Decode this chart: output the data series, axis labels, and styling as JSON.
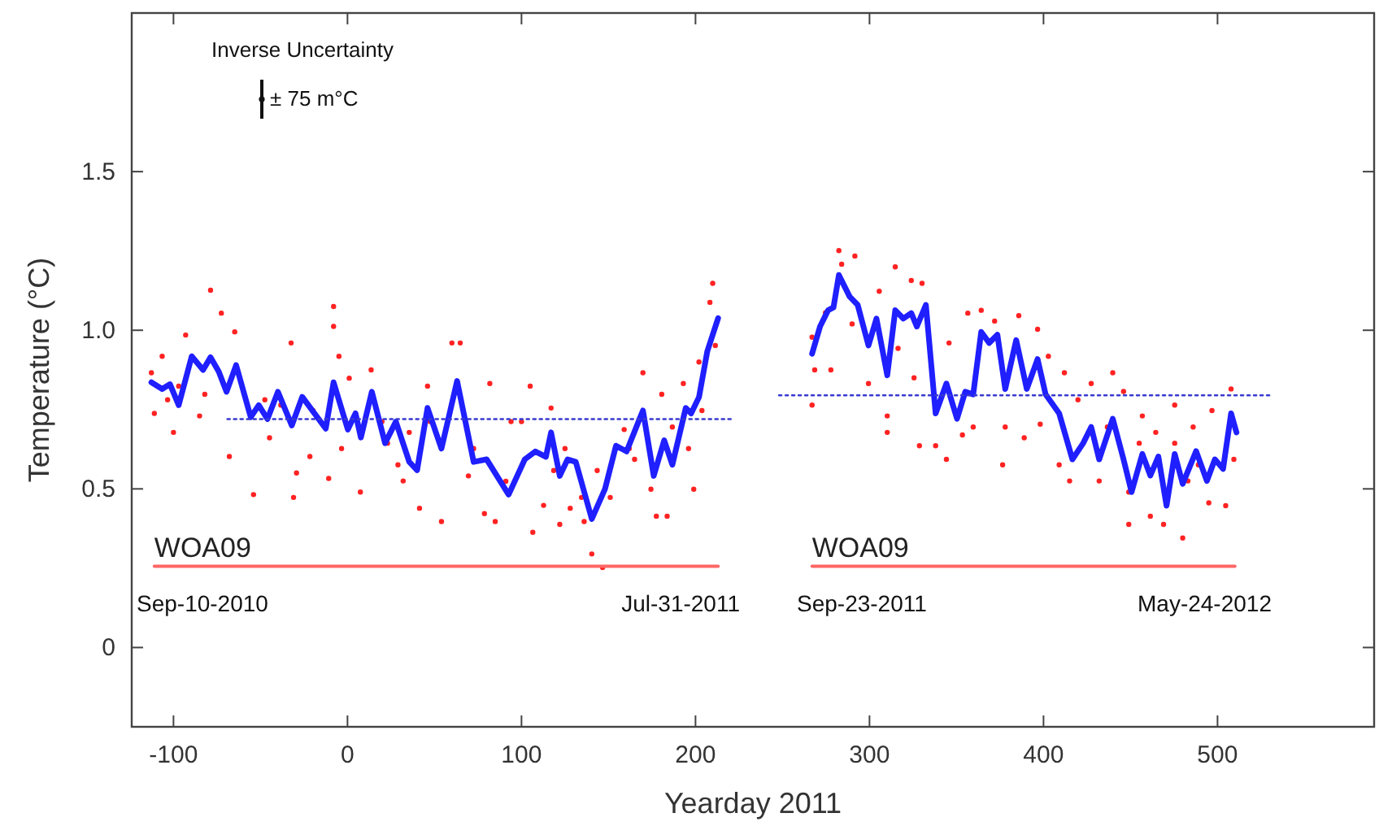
{
  "chart_data": {
    "type": "scatter",
    "xlabel": "Yearday 2011",
    "ylabel": "Temperature (°C)",
    "xlim": [
      -124,
      590
    ],
    "xticks": [
      -100,
      0,
      100,
      200,
      300,
      400,
      500
    ],
    "ylim": [
      -0.25,
      2.0
    ],
    "yticks": [
      0,
      0.5,
      {
        "value": 1,
        "label": "1.0"
      },
      1.5
    ],
    "grid": false,
    "annotations": [
      "Inverse Uncertainty",
      "± 75 m°C",
      "Sep-10-2010",
      "Jul-31-2011",
      "Sep-23-2011",
      "May-24-2012"
    ],
    "series": [
      {
        "color": "#ff2222",
        "marker": "circle",
        "x": [
          -78.7,
          -72.5,
          -64.8,
          -111,
          -100,
          -93,
          -82,
          -67.9,
          -54,
          -44.8,
          -32.4,
          -31,
          -29.3,
          -21.6,
          -10.8,
          -8,
          -8,
          -4.9,
          -3.4,
          7.4,
          13.6,
          19.8,
          29,
          32,
          41.4,
          46,
          54,
          60,
          64.8,
          69.5,
          78.7,
          81.8,
          84.9,
          94,
          100,
          105,
          106.5,
          112.7,
          117,
          122,
          125,
          128,
          134.5,
          136,
          140.4,
          146.6,
          151,
          159,
          165,
          169.8,
          174.4,
          177.5,
          180.6,
          183.7,
          196,
          199,
          203.7,
          209.9,
          208.3,
          211.4,
          -112.7,
          -106.5,
          -103.4,
          -97,
          -85,
          -47.5,
          -38.3,
          -19.8,
          1,
          23,
          35.5,
          47.5,
          72.5,
          91,
          118.5,
          143.5,
          161.9,
          186.7,
          193,
          202,
          267,
          267,
          268.5,
          274.7,
          277.8,
          282.4,
          284,
          291.6,
          290,
          299.4,
          305.6,
          310.2,
          310.2,
          314.8,
          316.4,
          324,
          325.6,
          330.2,
          328.7,
          338,
          344.2,
          345.7,
          353.4,
          356.5,
          359.6,
          364.2,
          371.9,
          376.5,
          378,
          385.8,
          388.9,
          396.6,
          398.1,
          402.8,
          409,
          412,
          415,
          419.8,
          427.4,
          432,
          436.7,
          439.8,
          446,
          449,
          449,
          455,
          456.8,
          461.4,
          464.5,
          469,
          475.4,
          475.4,
          480,
          483,
          486,
          489,
          495,
          496.8,
          504.7,
          507.8,
          509.4
        ],
        "values": [
          1.126,
          1.054,
          0.995,
          0.738,
          0.678,
          0.985,
          0.798,
          0.602,
          0.482,
          0.661,
          0.96,
          0.473,
          0.55,
          0.602,
          0.533,
          1.075,
          1.012,
          0.918,
          0.627,
          0.49,
          0.875,
          0.712,
          0.576,
          0.525,
          0.439,
          0.824,
          0.397,
          0.96,
          0.96,
          0.541,
          0.422,
          0.832,
          0.397,
          0.712,
          0.712,
          0.824,
          0.363,
          0.448,
          0.755,
          0.388,
          0.627,
          0.439,
          0.473,
          0.397,
          0.295,
          0.252,
          0.473,
          0.687,
          0.593,
          0.866,
          0.499,
          0.414,
          0.798,
          0.414,
          0.627,
          0.499,
          0.747,
          1.148,
          1.088,
          0.952,
          0.866,
          0.918,
          0.781,
          0.824,
          0.73,
          0.781,
          0.764,
          0.747,
          0.849,
          0.644,
          0.678,
          0.712,
          0.627,
          0.524,
          0.558,
          0.558,
          0.627,
          0.695,
          0.832,
          0.9,
          0.978,
          0.764,
          0.875,
          1.055,
          0.875,
          1.251,
          1.208,
          1.234,
          1.02,
          0.832,
          1.123,
          0.678,
          0.73,
          1.2,
          0.943,
          1.157,
          0.85,
          1.148,
          0.636,
          0.636,
          0.593,
          0.96,
          0.67,
          1.054,
          0.695,
          1.063,
          1.029,
          0.576,
          0.695,
          1.046,
          0.661,
          1.003,
          0.704,
          0.918,
          0.576,
          0.866,
          0.525,
          0.781,
          0.832,
          0.525,
          0.695,
          0.866,
          0.807,
          0.49,
          0.388,
          0.644,
          0.73,
          0.414,
          0.678,
          0.388,
          0.644,
          0.764,
          0.345,
          0.525,
          0.695,
          0.576,
          0.456,
          0.747,
          0.447,
          0.815,
          0.593
        ]
      },
      {
        "type": "line",
        "color": "#1f1fff",
        "x": [
          -112.7,
          -106.5,
          -102,
          -97,
          -89.5,
          -83,
          -78.7,
          -74,
          -69.5,
          -64,
          -55.6,
          -51,
          -46,
          -40,
          -32,
          -26,
          -12.5,
          -8,
          0.2,
          4.6,
          7.7,
          14,
          21.6,
          27.8,
          35.5,
          40,
          46,
          54,
          63,
          72.5,
          80,
          92.6,
          101.9,
          108,
          114,
          117,
          122,
          126.5,
          131.2,
          140.4,
          148,
          154.3,
          160.4,
          169.8,
          176,
          182,
          186.7,
          194.4,
          197.5,
          202,
          206.8,
          213
        ],
        "values": [
          0.836,
          0.815,
          0.83,
          0.764,
          0.918,
          0.875,
          0.915,
          0.87,
          0.806,
          0.89,
          0.726,
          0.764,
          0.72,
          0.806,
          0.7,
          0.79,
          0.69,
          0.836,
          0.687,
          0.738,
          0.662,
          0.806,
          0.644,
          0.712,
          0.585,
          0.559,
          0.755,
          0.627,
          0.84,
          0.585,
          0.593,
          0.482,
          0.593,
          0.618,
          0.601,
          0.678,
          0.541,
          0.593,
          0.585,
          0.405,
          0.5,
          0.636,
          0.618,
          0.747,
          0.541,
          0.653,
          0.576,
          0.755,
          0.738,
          0.789,
          0.934,
          1.038
        ]
      },
      {
        "type": "line",
        "color": "#1f1fff",
        "x": [
          267,
          271.6,
          276.2,
          279.3,
          282.4,
          288.6,
          293.2,
          299.4,
          304,
          310.2,
          314.8,
          319.4,
          324,
          327.2,
          332.4,
          338,
          344.2,
          350.3,
          355,
          359.6,
          364.2,
          368.8,
          373.5,
          378,
          384.3,
          390.4,
          396.6,
          401.2,
          409,
          416.6,
          422.8,
          427.4,
          432,
          439.8,
          446,
          450.6,
          456.8,
          461.4,
          466,
          470.7,
          475.4,
          480,
          487.7,
          493.9,
          498.5,
          503.2,
          507.8,
          510.9
        ],
        "values": [
          0.926,
          1.012,
          1.063,
          1.072,
          1.174,
          1.106,
          1.08,
          0.952,
          1.037,
          0.858,
          1.063,
          1.037,
          1.054,
          1.012,
          1.08,
          0.738,
          0.832,
          0.721,
          0.806,
          0.798,
          0.995,
          0.96,
          0.986,
          0.815,
          0.969,
          0.815,
          0.909,
          0.798,
          0.738,
          0.593,
          0.644,
          0.695,
          0.593,
          0.721,
          0.593,
          0.49,
          0.61,
          0.542,
          0.602,
          0.447,
          0.61,
          0.516,
          0.619,
          0.525,
          0.593,
          0.563,
          0.738,
          0.678
        ]
      },
      {
        "type": "line",
        "color": "#3a3ad0",
        "line_style": "dotted",
        "x": [
          -69,
          221
        ],
        "values": [
          0.72,
          0.72
        ]
      },
      {
        "type": "line",
        "color": "#3a3ad0",
        "line_style": "dotted",
        "x": [
          248,
          531
        ],
        "values": [
          0.795,
          0.795
        ]
      },
      {
        "type": "line",
        "name": "WOA09",
        "color": "#ff6666",
        "x": [
          -111,
          213
        ],
        "values": [
          0.256,
          0.256
        ]
      },
      {
        "type": "line",
        "name": "WOA09",
        "color": "#ff6666",
        "x": [
          267,
          510
        ],
        "values": [
          0.256,
          0.256
        ]
      }
    ]
  }
}
